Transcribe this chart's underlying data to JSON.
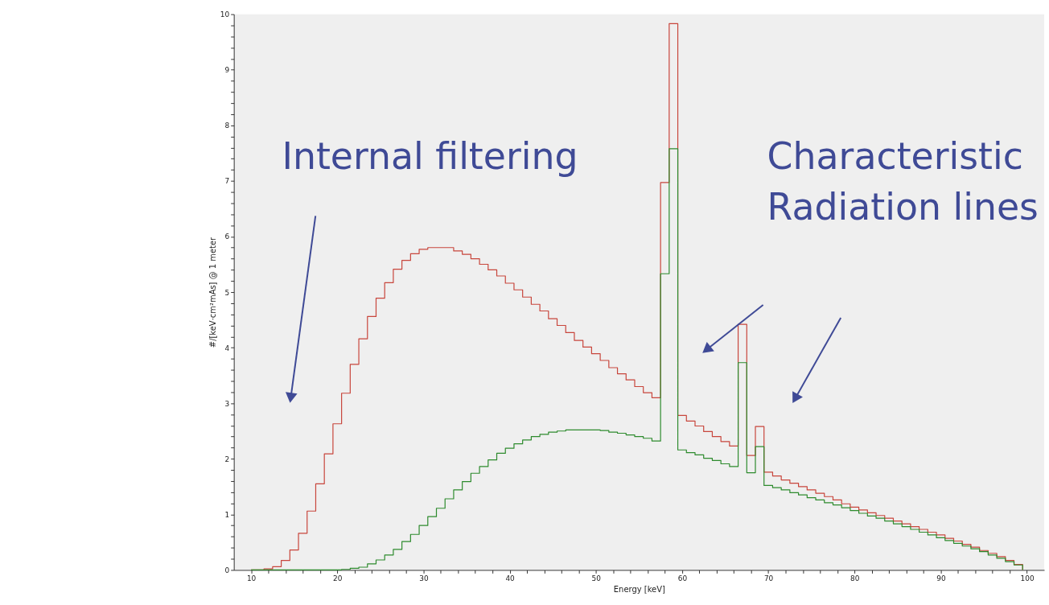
{
  "chart_data": {
    "type": "step",
    "xlabel": "Energy [keV]",
    "ylabel": "#/[keV·cm²mAs] @ 1 meter",
    "annotations": [
      "Internal filtering",
      "Characteristic\nRadiation lines"
    ],
    "x": [
      10,
      11.5,
      12.5,
      13.5,
      14.5,
      15.5,
      16.5,
      17.5,
      18.5,
      19.5,
      20.5,
      21.5,
      22.5,
      23.5,
      24.5,
      25.5,
      26.5,
      27.5,
      28.5,
      29.5,
      30.5,
      31.5,
      32.5,
      33.5,
      34.5,
      35.5,
      36.5,
      37.5,
      38.5,
      39.5,
      40.5,
      41.5,
      42.5,
      43.5,
      44.5,
      45.5,
      46.5,
      47.5,
      48.5,
      49.5,
      50.5,
      51.5,
      52.5,
      53.5,
      54.5,
      55.5,
      56.5,
      57.5,
      58.5,
      59.5,
      60.5,
      61.5,
      62.5,
      63.5,
      64.5,
      65.5,
      66.5,
      67.5,
      68.5,
      69.5,
      70.5,
      71.5,
      72.5,
      73.5,
      74.5,
      75.5,
      76.5,
      77.5,
      78.5,
      79.5,
      80.5,
      81.5,
      82.5,
      83.5,
      84.5,
      85.5,
      86.5,
      87.5,
      88.5,
      89.5,
      90.5,
      91.5,
      92.5,
      93.5,
      94.5,
      95.5,
      96.5,
      97.5,
      98.5,
      99.5
    ],
    "series": [
      {
        "color": "#c8463c",
        "values": [
          0,
          0.02,
          0.06,
          0.17,
          0.36,
          0.66,
          1.06,
          1.55,
          2.09,
          2.63,
          3.18,
          3.7,
          4.16,
          4.56,
          4.89,
          5.17,
          5.41,
          5.57,
          5.69,
          5.77,
          5.8,
          5.8,
          5.8,
          5.74,
          5.68,
          5.6,
          5.5,
          5.4,
          5.29,
          5.16,
          5.04,
          4.91,
          4.78,
          4.66,
          4.52,
          4.4,
          4.27,
          4.13,
          4.01,
          3.89,
          3.77,
          3.64,
          3.53,
          3.42,
          3.3,
          3.19,
          3.1,
          6.97,
          9.83,
          2.78,
          2.68,
          2.59,
          2.49,
          2.4,
          2.31,
          2.23,
          4.42,
          2.06,
          2.58,
          1.76,
          1.69,
          1.62,
          1.56,
          1.5,
          1.44,
          1.38,
          1.32,
          1.26,
          1.19,
          1.13,
          1.08,
          1.03,
          0.98,
          0.93,
          0.88,
          0.83,
          0.78,
          0.73,
          0.68,
          0.63,
          0.57,
          0.52,
          0.46,
          0.41,
          0.35,
          0.3,
          0.24,
          0.17,
          0.1,
          0
        ]
      },
      {
        "color": "#2e8b2e",
        "values": [
          0,
          0,
          0,
          0,
          0,
          0,
          0,
          0,
          0,
          0,
          0.01,
          0.03,
          0.05,
          0.11,
          0.18,
          0.27,
          0.37,
          0.51,
          0.64,
          0.8,
          0.96,
          1.11,
          1.28,
          1.44,
          1.59,
          1.74,
          1.86,
          1.98,
          2.1,
          2.19,
          2.27,
          2.34,
          2.4,
          2.44,
          2.48,
          2.5,
          2.52,
          2.52,
          2.52,
          2.52,
          2.51,
          2.48,
          2.46,
          2.43,
          2.4,
          2.37,
          2.32,
          5.33,
          7.58,
          2.16,
          2.11,
          2.07,
          2.01,
          1.97,
          1.91,
          1.86,
          3.73,
          1.75,
          2.22,
          1.52,
          1.48,
          1.44,
          1.39,
          1.35,
          1.3,
          1.26,
          1.21,
          1.17,
          1.12,
          1.07,
          1.02,
          0.97,
          0.93,
          0.88,
          0.83,
          0.78,
          0.73,
          0.68,
          0.63,
          0.58,
          0.53,
          0.48,
          0.43,
          0.38,
          0.33,
          0.27,
          0.21,
          0.15,
          0.09,
          0
        ]
      }
    ],
    "xlim": [
      8,
      102
    ],
    "xticks": [
      10,
      {
        "value": 12,
        "label": null
      },
      {
        "value": 14,
        "label": null
      },
      {
        "value": 16,
        "label": null
      },
      {
        "value": 18,
        "label": null
      },
      20,
      {
        "value": 22,
        "label": null
      },
      {
        "value": 24,
        "label": null
      },
      {
        "value": 26,
        "label": null
      },
      {
        "value": 28,
        "label": null
      },
      30,
      {
        "value": 32,
        "label": null
      },
      {
        "value": 34,
        "label": null
      },
      {
        "value": 36,
        "label": null
      },
      {
        "value": 38,
        "label": null
      },
      40,
      {
        "value": 42,
        "label": null
      },
      {
        "value": 44,
        "label": null
      },
      {
        "value": 46,
        "label": null
      },
      {
        "value": 48,
        "label": null
      },
      50,
      {
        "value": 52,
        "label": null
      },
      {
        "value": 54,
        "label": null
      },
      {
        "value": 56,
        "label": null
      },
      {
        "value": 58,
        "label": null
      },
      60,
      {
        "value": 62,
        "label": null
      },
      {
        "value": 64,
        "label": null
      },
      {
        "value": 66,
        "label": null
      },
      {
        "value": 68,
        "label": null
      },
      70,
      {
        "value": 72,
        "label": null
      },
      {
        "value": 74,
        "label": null
      },
      {
        "value": 76,
        "label": null
      },
      {
        "value": 78,
        "label": null
      },
      80,
      {
        "value": 82,
        "label": null
      },
      {
        "value": 84,
        "label": null
      },
      {
        "value": 86,
        "label": null
      },
      {
        "value": 88,
        "label": null
      },
      90,
      {
        "value": 92,
        "label": null
      },
      {
        "value": 94,
        "label": null
      },
      {
        "value": 96,
        "label": null
      },
      {
        "value": 98,
        "label": null
      },
      100
    ],
    "ylim": [
      0,
      10
    ],
    "yticks": [
      0,
      {
        "value": 0.2,
        "label": null
      },
      {
        "value": 0.4,
        "label": null
      },
      {
        "value": 0.6,
        "label": null
      },
      {
        "value": 0.8,
        "label": null
      },
      1,
      {
        "value": 1.2,
        "label": null
      },
      {
        "value": 1.4,
        "label": null
      },
      {
        "value": 1.6,
        "label": null
      },
      {
        "value": 1.8,
        "label": null
      },
      2,
      {
        "value": 2.2,
        "label": null
      },
      {
        "value": 2.4,
        "label": null
      },
      {
        "value": 2.6,
        "label": null
      },
      {
        "value": 2.8,
        "label": null
      },
      3,
      {
        "value": 3.2,
        "label": null
      },
      {
        "value": 3.4,
        "label": null
      },
      {
        "value": 3.6,
        "label": null
      },
      {
        "value": 3.8,
        "label": null
      },
      4,
      {
        "value": 4.2,
        "label": null
      },
      {
        "value": 4.4,
        "label": null
      },
      {
        "value": 4.6,
        "label": null
      },
      {
        "value": 4.8,
        "label": null
      },
      5,
      {
        "value": 5.2,
        "label": null
      },
      {
        "value": 5.4,
        "label": null
      },
      {
        "value": 5.6,
        "label": null
      },
      {
        "value": 5.8,
        "label": null
      },
      6,
      {
        "value": 6.2,
        "label": null
      },
      {
        "value": 6.4,
        "label": null
      },
      {
        "value": 6.6,
        "label": null
      },
      {
        "value": 6.8,
        "label": null
      },
      7,
      {
        "value": 7.2,
        "label": null
      },
      {
        "value": 7.4,
        "label": null
      },
      {
        "value": 7.6,
        "label": null
      },
      {
        "value": 7.8,
        "label": null
      },
      8,
      {
        "value": 8.2,
        "label": null
      },
      {
        "value": 8.4,
        "label": null
      },
      {
        "value": 8.6,
        "label": null
      },
      {
        "value": 8.8,
        "label": null
      },
      9,
      {
        "value": 9.2,
        "label": null
      },
      {
        "value": 9.4,
        "label": null
      },
      {
        "value": 9.6,
        "label": null
      },
      {
        "value": 9.8,
        "label": null
      },
      10
    ],
    "grid": false
  }
}
